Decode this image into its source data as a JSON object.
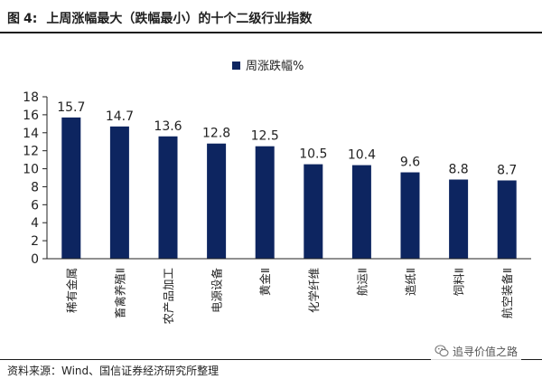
{
  "figure": {
    "label": "图",
    "number": "4:",
    "title": "上周涨幅最大（跌幅最小）的十个二级行业指数"
  },
  "source": "资料来源：Wind、国信证券经济研究所整理",
  "watermark": {
    "text": "追寻价值之路",
    "icon": "wechat-icon"
  },
  "chart_data": {
    "type": "bar",
    "title": "",
    "xlabel": "",
    "ylabel": "",
    "categories": [
      "稀有金属",
      "畜禽养殖Ⅱ",
      "农产品加工",
      "电源设备",
      "黄金Ⅱ",
      "化学纤维",
      "航运Ⅱ",
      "造纸Ⅱ",
      "饲料Ⅱ",
      "航空装备Ⅱ"
    ],
    "series": [
      {
        "name": "周涨跌幅%",
        "values": [
          15.7,
          14.7,
          13.6,
          12.8,
          12.5,
          10.5,
          10.4,
          9.6,
          8.8,
          8.7
        ],
        "color": "#0d2560"
      }
    ],
    "ylim": [
      0,
      18
    ],
    "yticks": [
      0,
      2,
      4,
      6,
      8,
      10,
      12,
      14,
      16,
      18
    ],
    "data_labels": true,
    "legend": "top-center",
    "grid": false
  }
}
